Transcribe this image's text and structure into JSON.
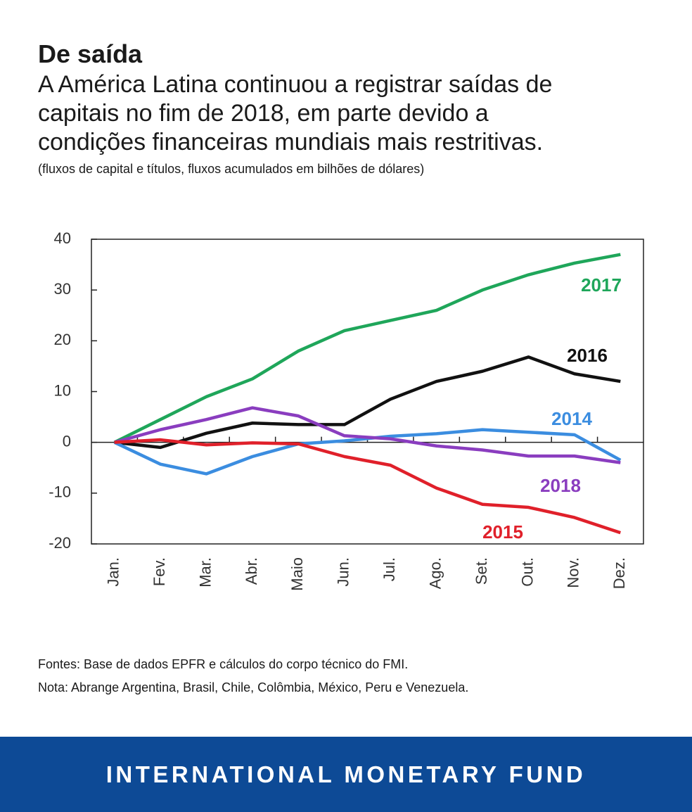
{
  "header": {
    "title": "De saída",
    "subtitle": [
      "A América Latina continuou a registrar saídas de",
      "capitais no fim de 2018, em parte devido a",
      "condições financeiras mundiais mais restritivas."
    ],
    "unit_note": "(fluxos de capital e títulos, fluxos acumulados em bilhões de dólares)"
  },
  "chart_data": {
    "type": "line",
    "categories": [
      "Jan.",
      "Fev.",
      "Mar.",
      "Abr.",
      "Maio",
      "Jun.",
      "Jul.",
      "Ago.",
      "Set.",
      "Out.",
      "Nov.",
      "Dez."
    ],
    "series": [
      {
        "name": "2017",
        "color": "#1fa65a",
        "values": [
          0,
          4.5,
          9,
          12.5,
          18,
          22,
          24,
          26,
          30,
          33,
          35.3,
          37
        ]
      },
      {
        "name": "2016",
        "color": "#111111",
        "values": [
          0,
          -1,
          1.8,
          3.8,
          3.5,
          3.5,
          8.5,
          12,
          14,
          16.8,
          13.5,
          12
        ]
      },
      {
        "name": "2014",
        "color": "#3b8de0",
        "values": [
          0,
          -4.3,
          -6.2,
          -2.8,
          -0.3,
          0.3,
          1.2,
          1.7,
          2.5,
          2,
          1.5,
          -3.5
        ]
      },
      {
        "name": "2018",
        "color": "#8a3dbf",
        "values": [
          0,
          2.5,
          4.5,
          6.8,
          5.2,
          1.3,
          0.7,
          -0.7,
          -1.5,
          -2.7,
          -2.7,
          -4
        ]
      },
      {
        "name": "2015",
        "color": "#e0202a",
        "values": [
          0,
          0.5,
          -0.5,
          -0.1,
          -0.3,
          -2.8,
          -4.5,
          -9,
          -12.2,
          -12.8,
          -14.8,
          -17.8
        ]
      }
    ],
    "ylim": [
      -20,
      40
    ],
    "yticks": [
      -20,
      -10,
      0,
      10,
      20,
      30,
      40
    ]
  },
  "footnotes": [
    "Fontes: Base de dados EPFR e cálculos do corpo técnico do FMI.",
    "Nota: Abrange Argentina, Brasil, Chile, Colômbia, México, Peru e Venezuela."
  ],
  "footer": "INTERNATIONAL MONETARY FUND"
}
